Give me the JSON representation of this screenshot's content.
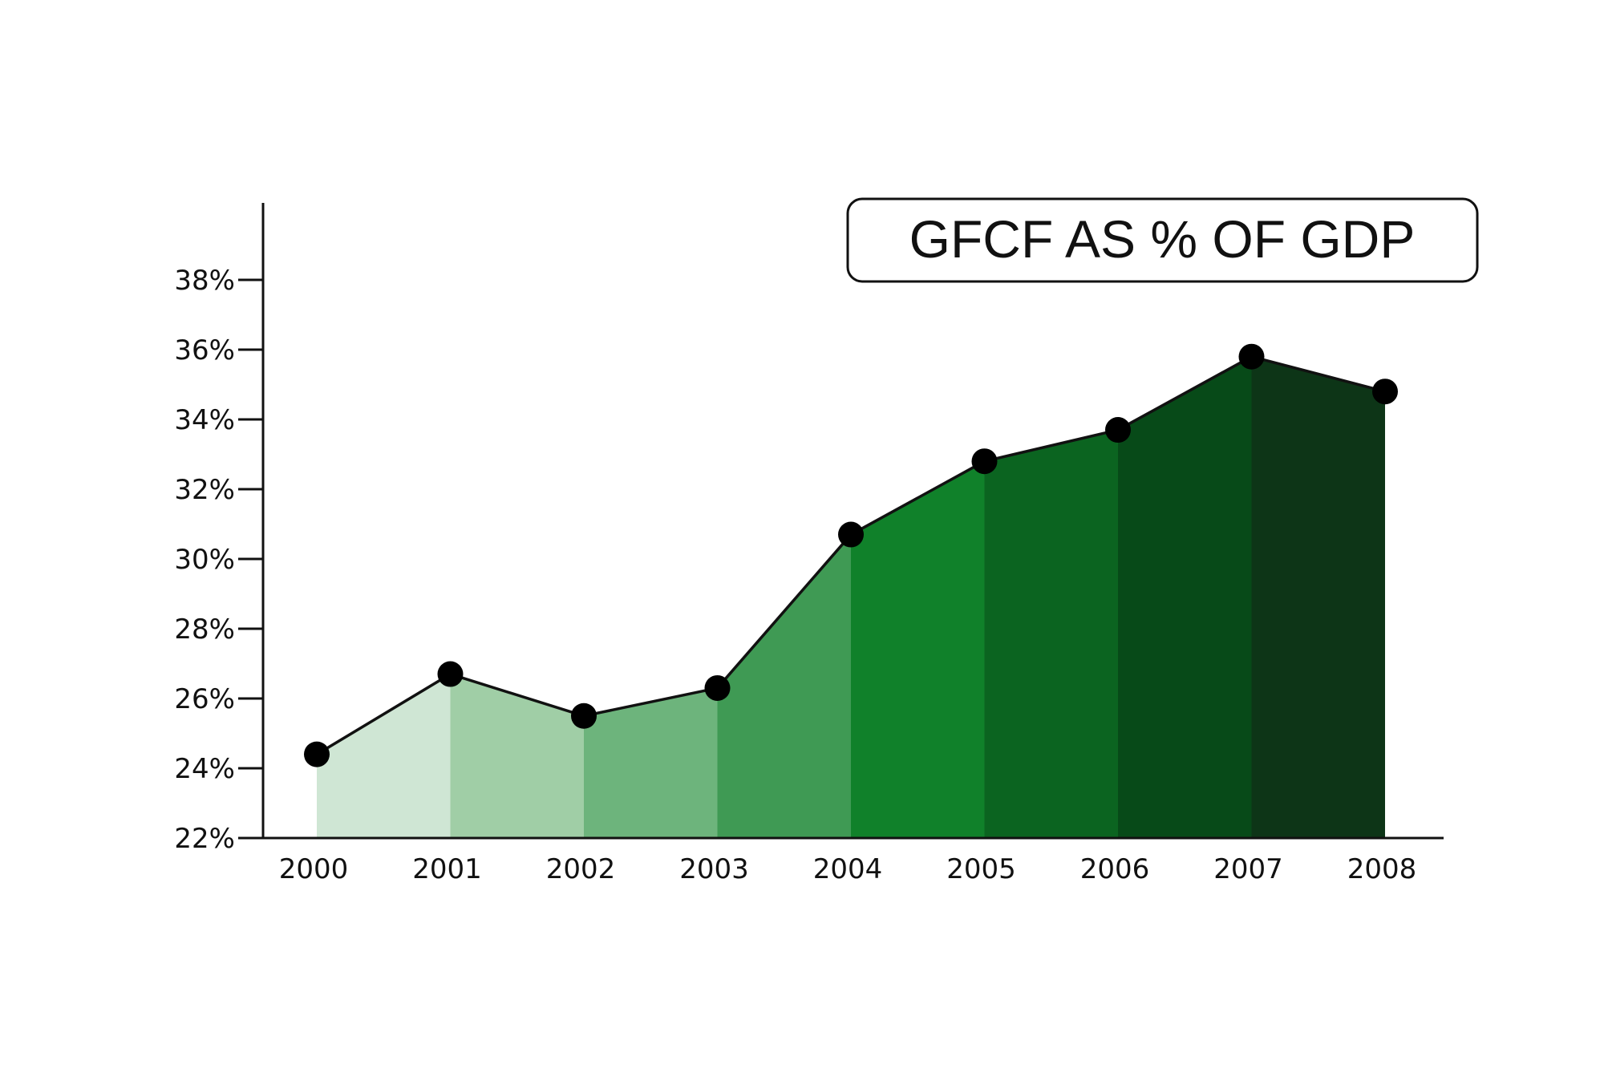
{
  "chart_data": {
    "type": "area",
    "title": "GFCF AS % OF GDP",
    "xlabel": "",
    "ylabel": "",
    "categories": [
      "2000",
      "2001",
      "2002",
      "2003",
      "2004",
      "2005",
      "2006",
      "2007",
      "2008"
    ],
    "values": [
      24.4,
      26.7,
      25.5,
      26.3,
      30.7,
      32.8,
      33.7,
      35.8,
      34.8
    ],
    "ylim": [
      22,
      40
    ],
    "yticks": [
      22,
      24,
      26,
      28,
      30,
      32,
      34,
      36,
      38
    ],
    "ytick_labels": [
      "22%",
      "24%",
      "26%",
      "28%",
      "30%",
      "32%",
      "34%",
      "36%",
      "38%"
    ],
    "grid": false,
    "legend": "none",
    "segment_colors": [
      "#cfe6d4",
      "#a0cea6",
      "#6db47c",
      "#3f9a54",
      "#10812a",
      "#0b6420",
      "#074a18",
      "#0d3517"
    ],
    "line_color": "#111111",
    "marker_color": "#000000"
  }
}
